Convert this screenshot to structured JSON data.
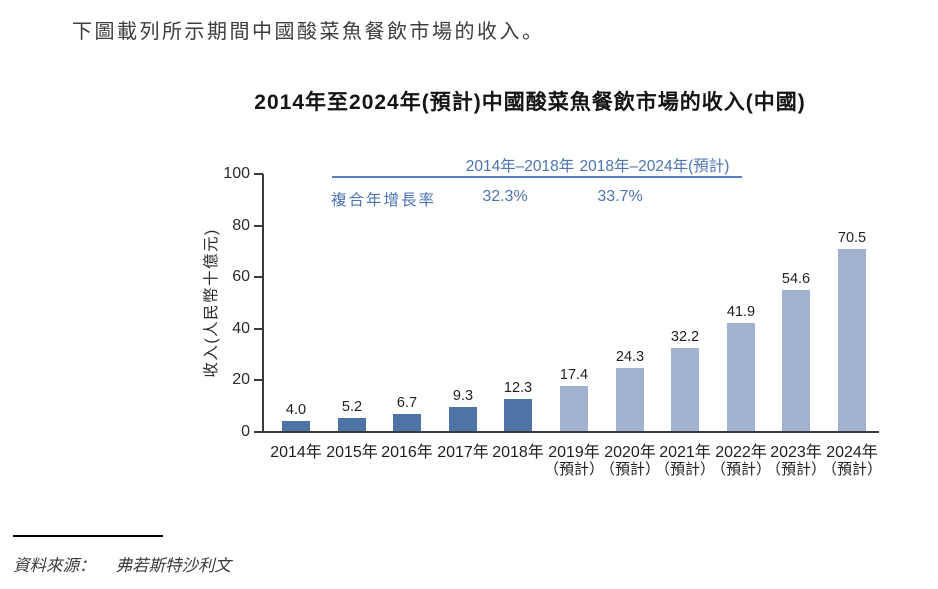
{
  "intro": {
    "text": "下圖載列所示期間中國酸菜魚餐飲市場的收入。"
  },
  "chart_data": {
    "type": "bar",
    "title": "2014年至2024年(預計)中國酸菜魚餐飲市場的收入(中國)",
    "ylabel": "收入(人民幣十億元)",
    "xlabel": "",
    "ylim": [
      0,
      100
    ],
    "y_ticks": [
      0,
      20,
      40,
      60,
      80,
      100
    ],
    "grid": "off",
    "categories": [
      "2014年",
      "2015年",
      "2016年",
      "2017年",
      "2018年",
      "2019年",
      "2020年",
      "2021年",
      "2022年",
      "2023年",
      "2024年"
    ],
    "category_sublabels": [
      "",
      "",
      "",
      "",
      "",
      "（預計）",
      "（預計）",
      "（預計）",
      "（預計）",
      "（預計）",
      "（預計）"
    ],
    "values": [
      4.0,
      5.2,
      6.7,
      9.3,
      12.3,
      17.4,
      24.3,
      32.2,
      41.9,
      54.6,
      70.5
    ],
    "value_labels": [
      "4.0",
      "5.2",
      "6.7",
      "9.3",
      "12.3",
      "17.4",
      "24.3",
      "32.2",
      "41.9",
      "54.6",
      "70.5"
    ],
    "actual_color": "#4e73a7",
    "forecast_color": "#a1b2d1",
    "forecast_start_index": 5,
    "cagr": {
      "label": "複合年增長率",
      "accent_color": "#4c73b2",
      "line_color": "#5b7fba",
      "periods": [
        {
          "range": "2014年–2018年",
          "value": "32.3%"
        },
        {
          "range": "2018年–2024年(預計)",
          "value": "33.7%"
        }
      ]
    }
  },
  "source": {
    "label": "資料來源：",
    "text": "弗若斯特沙利文"
  }
}
